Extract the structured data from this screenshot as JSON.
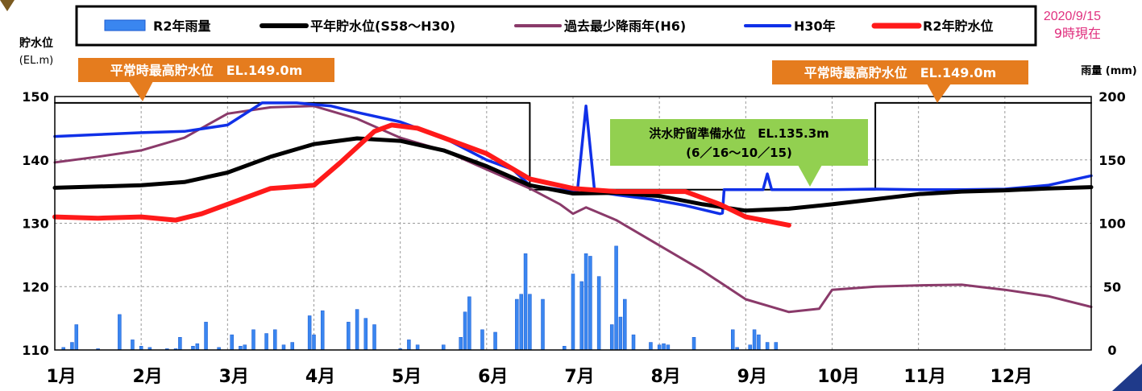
{
  "date_stamp": {
    "line1": "2020/9/15",
    "line2": "9時現在"
  },
  "left_axis_title": {
    "line1": "貯水位",
    "line2": "(EL.m)"
  },
  "right_axis_title": "雨量 (mm)",
  "annotations": {
    "max_level_left": "平常時最高貯水位　EL.149.0m",
    "max_level_right": "平常時最高貯水位　EL.149.0m",
    "flood_line1": "洪水貯留準備水位　EL.135.3m",
    "flood_line2": "(6／16～10／15)"
  },
  "colors": {
    "rain": "#3a86f0",
    "normal": "#000000",
    "driest": "#8a3a6a",
    "h30": "#1030e8",
    "r2": "#ff1a1a",
    "rule": "#000000",
    "label_bg": "#e57c1e",
    "flood_bg": "#92d050",
    "date_text": "#e0307f"
  },
  "chart_data": {
    "type": "line",
    "x_unit": "month",
    "categories": [
      "1月",
      "2月",
      "3月",
      "4月",
      "5月",
      "6月",
      "7月",
      "8月",
      "9月",
      "10月",
      "11月",
      "12月"
    ],
    "xlim": [
      1,
      13
    ],
    "ylim": [
      110,
      150
    ],
    "yticks": [
      110,
      120,
      130,
      140,
      150
    ],
    "ylabel": "貯水位 (EL.m)",
    "y2lim": [
      0,
      200
    ],
    "y2ticks": [
      0,
      50,
      100,
      150,
      200
    ],
    "y2label": "雨量 (mm)",
    "grid": true,
    "legend_position": "top",
    "series": [
      {
        "name": "R2年雨量",
        "kind": "bar",
        "axis": "right",
        "points": [
          [
            1.1,
            2
          ],
          [
            1.2,
            6
          ],
          [
            1.25,
            20
          ],
          [
            1.5,
            1
          ],
          [
            1.75,
            28
          ],
          [
            1.9,
            8
          ],
          [
            2.0,
            3
          ],
          [
            2.1,
            2
          ],
          [
            2.3,
            1
          ],
          [
            2.4,
            1
          ],
          [
            2.45,
            10
          ],
          [
            2.6,
            3
          ],
          [
            2.65,
            5
          ],
          [
            2.75,
            22
          ],
          [
            2.9,
            2
          ],
          [
            3.05,
            12
          ],
          [
            3.15,
            3
          ],
          [
            3.2,
            4
          ],
          [
            3.3,
            16
          ],
          [
            3.45,
            13
          ],
          [
            3.55,
            16
          ],
          [
            3.65,
            4
          ],
          [
            3.75,
            6
          ],
          [
            3.95,
            27
          ],
          [
            4.0,
            12
          ],
          [
            4.1,
            31
          ],
          [
            4.4,
            22
          ],
          [
            4.5,
            32
          ],
          [
            4.6,
            25
          ],
          [
            4.7,
            20
          ],
          [
            5.0,
            1
          ],
          [
            5.1,
            8
          ],
          [
            5.2,
            4
          ],
          [
            5.5,
            4
          ],
          [
            5.7,
            10
          ],
          [
            5.75,
            30
          ],
          [
            5.8,
            42
          ],
          [
            5.95,
            16
          ],
          [
            6.1,
            14
          ],
          [
            6.35,
            40
          ],
          [
            6.4,
            44
          ],
          [
            6.45,
            76
          ],
          [
            6.5,
            44
          ],
          [
            6.65,
            40
          ],
          [
            6.9,
            3
          ],
          [
            7.0,
            60
          ],
          [
            7.1,
            54
          ],
          [
            7.15,
            76
          ],
          [
            7.2,
            74
          ],
          [
            7.3,
            58
          ],
          [
            7.45,
            20
          ],
          [
            7.5,
            82
          ],
          [
            7.55,
            26
          ],
          [
            7.6,
            40
          ],
          [
            7.7,
            12
          ],
          [
            7.9,
            6
          ],
          [
            8.0,
            4
          ],
          [
            8.05,
            5
          ],
          [
            8.1,
            4
          ],
          [
            8.4,
            10
          ],
          [
            8.85,
            16
          ],
          [
            8.9,
            2
          ],
          [
            9.05,
            4
          ],
          [
            9.1,
            16
          ],
          [
            9.15,
            12
          ],
          [
            9.25,
            6
          ],
          [
            9.35,
            6
          ]
        ]
      },
      {
        "name": "平年貯水位(S58～H30)",
        "kind": "line",
        "axis": "left",
        "points": [
          [
            1.0,
            135.6
          ],
          [
            2.0,
            136.0
          ],
          [
            2.5,
            136.5
          ],
          [
            3.0,
            138.0
          ],
          [
            3.5,
            140.5
          ],
          [
            4.0,
            142.5
          ],
          [
            4.5,
            143.4
          ],
          [
            5.0,
            143.0
          ],
          [
            5.5,
            141.5
          ],
          [
            6.0,
            139.0
          ],
          [
            6.5,
            136.0
          ],
          [
            7.0,
            134.7
          ],
          [
            7.5,
            134.8
          ],
          [
            8.0,
            134.3
          ],
          [
            8.5,
            133.0
          ],
          [
            9.0,
            132.0
          ],
          [
            9.5,
            132.3
          ],
          [
            10.0,
            133.0
          ],
          [
            10.5,
            133.8
          ],
          [
            11.0,
            134.6
          ],
          [
            11.5,
            135.0
          ],
          [
            12.0,
            135.2
          ],
          [
            12.5,
            135.5
          ],
          [
            13.0,
            135.7
          ]
        ]
      },
      {
        "name": "過去最少降雨年(H6)",
        "kind": "line",
        "axis": "left",
        "points": [
          [
            1.0,
            139.6
          ],
          [
            1.5,
            140.5
          ],
          [
            2.0,
            141.5
          ],
          [
            2.5,
            143.5
          ],
          [
            3.0,
            147.3
          ],
          [
            3.5,
            148.3
          ],
          [
            4.0,
            148.5
          ],
          [
            4.5,
            146.5
          ],
          [
            5.0,
            143.5
          ],
          [
            5.5,
            141.5
          ],
          [
            6.0,
            138.5
          ],
          [
            6.5,
            135.5
          ],
          [
            6.85,
            133.0
          ],
          [
            7.0,
            131.5
          ],
          [
            7.15,
            132.5
          ],
          [
            7.5,
            130.5
          ],
          [
            8.0,
            126.5
          ],
          [
            8.5,
            122.5
          ],
          [
            9.0,
            118.0
          ],
          [
            9.5,
            116.0
          ],
          [
            9.85,
            116.5
          ],
          [
            10.0,
            119.5
          ],
          [
            10.5,
            120.0
          ],
          [
            11.0,
            120.2
          ],
          [
            11.5,
            120.3
          ],
          [
            12.0,
            119.5
          ],
          [
            12.5,
            118.5
          ],
          [
            13.0,
            116.8
          ]
        ]
      },
      {
        "name": "H30年",
        "kind": "line",
        "axis": "left",
        "points": [
          [
            1.0,
            143.7
          ],
          [
            1.5,
            144.0
          ],
          [
            2.0,
            144.3
          ],
          [
            2.5,
            144.5
          ],
          [
            3.0,
            145.5
          ],
          [
            3.4,
            149.0
          ],
          [
            3.8,
            149.0
          ],
          [
            4.2,
            148.5
          ],
          [
            4.5,
            147.5
          ],
          [
            5.0,
            146.0
          ],
          [
            5.5,
            143.5
          ],
          [
            6.0,
            140.0
          ],
          [
            6.3,
            138.5
          ],
          [
            6.5,
            136.0
          ],
          [
            6.85,
            135.3
          ],
          [
            7.05,
            135.0
          ],
          [
            7.15,
            148.5
          ],
          [
            7.25,
            135.0
          ],
          [
            7.5,
            134.5
          ],
          [
            7.9,
            133.8
          ],
          [
            8.3,
            132.8
          ],
          [
            8.7,
            131.5
          ],
          [
            8.73,
            131.6
          ],
          [
            8.75,
            135.3
          ],
          [
            9.2,
            135.3
          ],
          [
            9.25,
            137.8
          ],
          [
            9.3,
            135.3
          ],
          [
            10.0,
            135.3
          ],
          [
            10.5,
            135.4
          ],
          [
            11.0,
            135.3
          ],
          [
            11.5,
            135.3
          ],
          [
            12.0,
            135.4
          ],
          [
            12.5,
            136.0
          ],
          [
            13.0,
            137.5
          ]
        ]
      },
      {
        "name": "R2年貯水位",
        "kind": "line",
        "axis": "left",
        "points": [
          [
            1.0,
            131.0
          ],
          [
            1.5,
            130.8
          ],
          [
            2.0,
            131.0
          ],
          [
            2.4,
            130.5
          ],
          [
            2.7,
            131.5
          ],
          [
            3.0,
            133.0
          ],
          [
            3.5,
            135.5
          ],
          [
            4.0,
            136.0
          ],
          [
            4.3,
            139.5
          ],
          [
            4.7,
            144.5
          ],
          [
            4.9,
            145.5
          ],
          [
            5.2,
            145.0
          ],
          [
            5.5,
            143.5
          ],
          [
            6.0,
            141.0
          ],
          [
            6.5,
            137.0
          ],
          [
            7.0,
            135.5
          ],
          [
            7.5,
            135.0
          ],
          [
            8.0,
            135.0
          ],
          [
            8.3,
            135.0
          ],
          [
            8.7,
            133.0
          ],
          [
            9.0,
            131.0
          ],
          [
            9.5,
            129.7
          ]
        ]
      },
      {
        "name": "平常時最高貯水位 / 洪水貯留準備水位",
        "kind": "step",
        "axis": "left",
        "points": [
          [
            1.0,
            149.0
          ],
          [
            6.5,
            149.0
          ],
          [
            6.5,
            135.3
          ],
          [
            10.5,
            135.3
          ],
          [
            10.5,
            149.0
          ],
          [
            13.0,
            149.0
          ]
        ]
      }
    ]
  }
}
